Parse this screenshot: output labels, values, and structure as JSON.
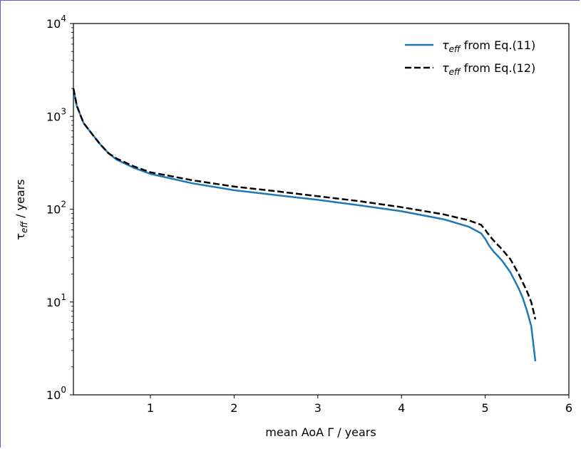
{
  "chart_data": {
    "type": "line",
    "xlabel": "mean AoA Γ / years",
    "ylabel_main": "τ",
    "ylabel_sub": "eff",
    "ylabel_rest": " / years",
    "yscale": "log",
    "xlim": [
      0.08,
      6
    ],
    "ylim": [
      1,
      10000
    ],
    "x_ticks": [
      1,
      2,
      3,
      4,
      5,
      6
    ],
    "x_tick_labels": [
      "1",
      "2",
      "3",
      "4",
      "5",
      "6"
    ],
    "y_ticks": [
      1,
      10,
      100,
      1000,
      10000
    ],
    "y_tick_labels": [
      {
        "base": "10",
        "exp": "0"
      },
      {
        "base": "10",
        "exp": "1"
      },
      {
        "base": "10",
        "exp": "2"
      },
      {
        "base": "10",
        "exp": "3"
      },
      {
        "base": "10",
        "exp": "4"
      }
    ],
    "grid": false,
    "legend_position": "top-right",
    "series": [
      {
        "name": "τ_eff from Eq.(11)",
        "label_main": "τ",
        "label_sub": "eff",
        "label_rest": " from Eq.(11)",
        "color": "#1f77b4",
        "style": "solid",
        "x": [
          0.08,
          0.12,
          0.2,
          0.3,
          0.4,
          0.5,
          0.6,
          0.8,
          1.0,
          1.5,
          2.0,
          2.5,
          3.0,
          3.5,
          4.0,
          4.5,
          4.8,
          4.95,
          5.0,
          5.05,
          5.1,
          5.2,
          5.3,
          5.4,
          5.45,
          5.5,
          5.55,
          5.6
        ],
        "y": [
          2000,
          1300,
          850,
          650,
          500,
          400,
          340,
          280,
          240,
          190,
          160,
          142,
          126,
          110,
          95,
          78,
          65,
          55,
          48,
          40,
          35,
          28,
          21,
          14,
          11,
          8,
          5.5,
          2.3
        ]
      },
      {
        "name": "τ_eff from Eq.(12)",
        "label_main": "τ",
        "label_sub": "eff",
        "label_rest": " from Eq.(12)",
        "color": "#000000",
        "style": "dashed",
        "x": [
          0.08,
          0.12,
          0.2,
          0.3,
          0.4,
          0.5,
          0.6,
          0.8,
          1.0,
          1.5,
          2.0,
          2.5,
          3.0,
          3.5,
          4.0,
          4.5,
          4.8,
          4.95,
          5.0,
          5.05,
          5.1,
          5.2,
          5.3,
          5.4,
          5.5,
          5.55,
          5.6
        ],
        "y": [
          2000,
          1300,
          850,
          650,
          500,
          400,
          350,
          290,
          250,
          205,
          175,
          156,
          138,
          122,
          105,
          88,
          76,
          68,
          60,
          52,
          46,
          37,
          29,
          20,
          13,
          10,
          6.5
        ]
      }
    ]
  }
}
